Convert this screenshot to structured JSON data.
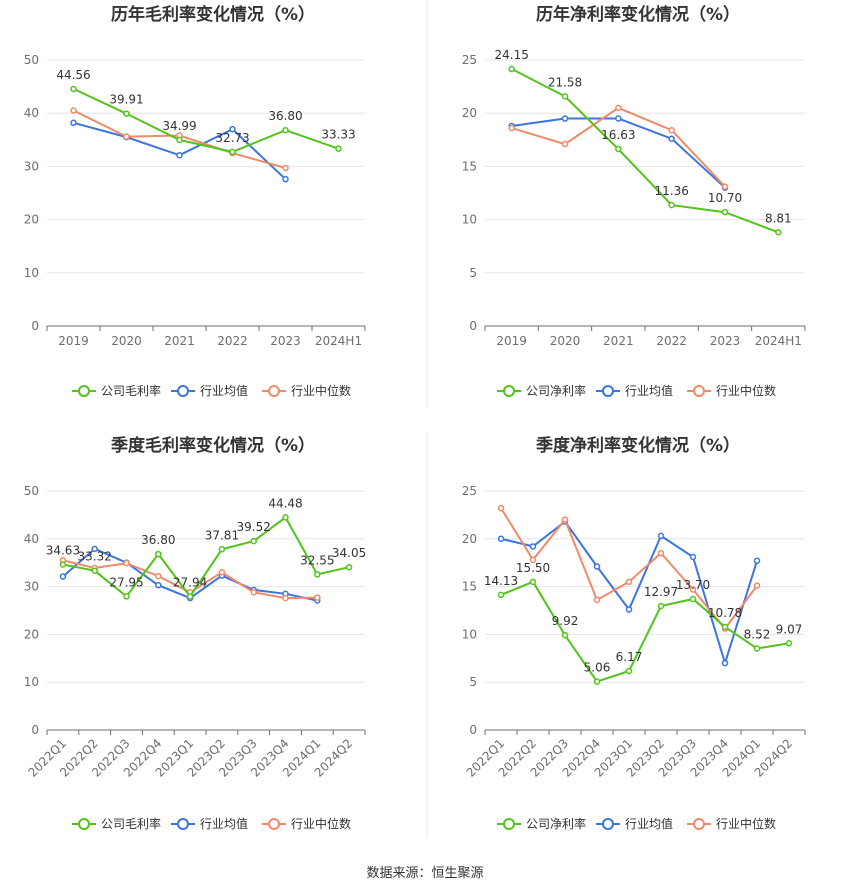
{
  "source_text": "数据来源：恒生聚源",
  "colors": {
    "company": "#52c41a",
    "avg": "#3a75e0",
    "median": "#f08a68",
    "axis_text": "#6e6e6e",
    "grid": "#e6e6e6",
    "divider": "#e8e8e8"
  },
  "chart_data": [
    {
      "type": "line",
      "title": "历年毛利率变化情况（%）",
      "categories": [
        "2019",
        "2020",
        "2021",
        "2022",
        "2023",
        "2024H1"
      ],
      "ylim": [
        0,
        50
      ],
      "yticks": [
        "0",
        "10",
        "20",
        "30",
        "40",
        "50"
      ],
      "grid": true,
      "legend_position": "bottom",
      "rotate_labels": false,
      "series": [
        {
          "name": "公司毛利率",
          "key": "company",
          "values": [
            44.56,
            39.91,
            34.99,
            32.73,
            36.8,
            33.33
          ],
          "labels": [
            "44.56",
            "39.91",
            "34.99",
            "32.73",
            "36.80",
            "33.33"
          ]
        },
        {
          "name": "行业均值",
          "key": "avg",
          "values": [
            38.2,
            35.5,
            32.1,
            37.0,
            27.6,
            null
          ]
        },
        {
          "name": "行业中位数",
          "key": "median",
          "values": [
            40.5,
            35.6,
            35.8,
            32.5,
            29.7,
            null
          ]
        }
      ]
    },
    {
      "type": "line",
      "title": "历年净利率变化情况（%）",
      "categories": [
        "2019",
        "2020",
        "2021",
        "2022",
        "2023",
        "2024H1"
      ],
      "ylim": [
        0,
        25
      ],
      "yticks": [
        "0",
        "5",
        "10",
        "15",
        "20",
        "25"
      ],
      "grid": true,
      "legend_position": "bottom",
      "rotate_labels": false,
      "series": [
        {
          "name": "公司净利率",
          "key": "company",
          "values": [
            24.15,
            21.58,
            16.63,
            11.36,
            10.7,
            8.81
          ],
          "labels": [
            "24.15",
            "21.58",
            "16.63",
            "11.36",
            "10.70",
            "8.81"
          ]
        },
        {
          "name": "行业均值",
          "key": "avg",
          "values": [
            18.8,
            19.5,
            19.5,
            17.6,
            13.0,
            null
          ]
        },
        {
          "name": "行业中位数",
          "key": "median",
          "values": [
            18.6,
            17.1,
            20.5,
            18.4,
            13.1,
            null
          ]
        }
      ]
    },
    {
      "type": "line",
      "title": "季度毛利率变化情况（%）",
      "categories": [
        "2022Q1",
        "2022Q2",
        "2022Q3",
        "2022Q4",
        "2023Q1",
        "2023Q2",
        "2023Q3",
        "2023Q4",
        "2024Q1",
        "2024Q2"
      ],
      "ylim": [
        0,
        50
      ],
      "yticks": [
        "0",
        "10",
        "20",
        "30",
        "40",
        "50"
      ],
      "grid": true,
      "legend_position": "bottom",
      "rotate_labels": true,
      "series": [
        {
          "name": "公司毛利率",
          "key": "company",
          "values": [
            34.63,
            33.32,
            27.95,
            36.8,
            27.94,
            37.81,
            39.52,
            44.48,
            32.55,
            34.05
          ],
          "labels": [
            "34.63",
            "33.32",
            "27.95",
            "36.80",
            "27.94",
            "37.81",
            "39.52",
            "44.48",
            "32.55",
            "34.05"
          ]
        },
        {
          "name": "行业均值",
          "key": "avg",
          "values": [
            32.1,
            37.9,
            35.0,
            30.3,
            27.6,
            32.3,
            29.3,
            28.5,
            27.1,
            null
          ]
        },
        {
          "name": "行业中位数",
          "key": "median",
          "values": [
            35.5,
            33.9,
            34.9,
            32.2,
            28.8,
            33.0,
            28.8,
            27.6,
            27.7,
            null
          ]
        }
      ]
    },
    {
      "type": "line",
      "title": "季度净利率变化情况（%）",
      "categories": [
        "2022Q1",
        "2022Q2",
        "2022Q3",
        "2022Q4",
        "2023Q1",
        "2023Q2",
        "2023Q3",
        "2023Q4",
        "2024Q1",
        "2024Q2"
      ],
      "ylim": [
        0,
        25
      ],
      "yticks": [
        "0",
        "5",
        "10",
        "15",
        "20",
        "25"
      ],
      "grid": true,
      "legend_position": "bottom",
      "rotate_labels": true,
      "series": [
        {
          "name": "公司净利率",
          "key": "company",
          "values": [
            14.13,
            15.5,
            9.92,
            5.06,
            6.17,
            12.97,
            13.7,
            10.78,
            8.52,
            9.07
          ],
          "labels": [
            "14.13",
            "15.50",
            "9.92",
            "5.06",
            "6.17",
            "12.97",
            "13.70",
            "10.78",
            "8.52",
            "9.07"
          ]
        },
        {
          "name": "行业均值",
          "key": "avg",
          "values": [
            20.0,
            19.2,
            21.8,
            17.1,
            12.6,
            20.3,
            18.1,
            7.0,
            17.7,
            null
          ]
        },
        {
          "name": "行业中位数",
          "key": "median",
          "values": [
            23.2,
            17.8,
            22.0,
            13.6,
            15.5,
            18.5,
            14.7,
            10.6,
            15.1,
            null
          ]
        }
      ]
    }
  ]
}
